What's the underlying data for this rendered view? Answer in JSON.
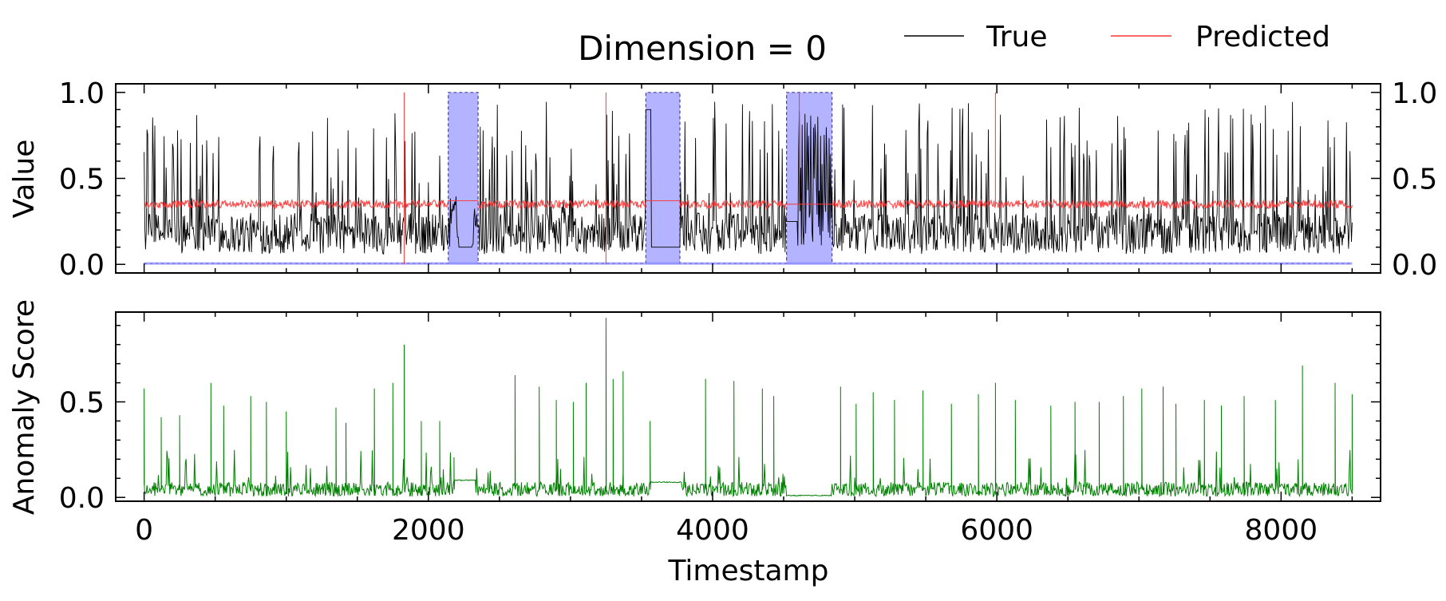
{
  "figure": {
    "title": "Dimension = 0",
    "legend": [
      {
        "label": "True",
        "color": "#000000"
      },
      {
        "label": "Predicted",
        "color": "#ff3333"
      }
    ],
    "legend_placement": "top-right"
  },
  "chart_data": [
    {
      "type": "line",
      "ylabel": "Value",
      "xlim": [
        -200,
        8700
      ],
      "ylim": [
        -0.05,
        1.05
      ],
      "xticks": [
        0,
        2000,
        4000,
        6000,
        8000
      ],
      "yticks": [
        0.0,
        0.5,
        1.0
      ],
      "ytick_labels": [
        "0.0",
        "0.5",
        "1.0"
      ],
      "ytick_labels_right": [
        "0.0",
        "0.5",
        "1.0"
      ],
      "grid": false,
      "x_range": [
        0,
        8500
      ],
      "series": [
        {
          "name": "True",
          "color": "#000000",
          "baseline": 0.18,
          "noise": 0.12,
          "spike_prob": 0.06,
          "spike_max": 0.95
        },
        {
          "name": "Predicted",
          "color": "#ff3333",
          "center": 0.35,
          "noise": 0.025,
          "spikes": [
            {
              "x": 1830,
              "y": 1.0
            },
            {
              "x": 1830,
              "y": 0.0
            },
            {
              "x": 3250,
              "y": 1.0
            },
            {
              "x": 3250,
              "y": 0.0
            },
            {
              "x": 4610,
              "y": 1.0
            },
            {
              "x": 5990,
              "y": 1.0
            }
          ]
        }
      ],
      "anomaly_labels": {
        "color": "#b3b3ff",
        "edge_color": "#4444aa",
        "low": 0.0,
        "high": 1.0,
        "regions": [
          [
            2140,
            2350
          ],
          [
            3530,
            3770
          ],
          [
            4520,
            4840
          ]
        ]
      }
    },
    {
      "type": "line",
      "ylabel": "Anomaly Score",
      "xlabel": "Timestamp",
      "xlim": [
        -200,
        8700
      ],
      "ylim": [
        -0.02,
        0.97
      ],
      "xticks": [
        0,
        2000,
        4000,
        6000,
        8000
      ],
      "xtick_labels": [
        "0",
        "2000",
        "4000",
        "6000",
        "8000"
      ],
      "yticks": [
        0.0,
        0.5
      ],
      "ytick_labels": [
        "0.0",
        "0.5"
      ],
      "grid": false,
      "series": [
        {
          "name": "Anomaly Score",
          "color": "#008000",
          "baseline": 0.04,
          "noise": 0.04,
          "peaks": [
            [
              0,
              0.57
            ],
            [
              120,
              0.42
            ],
            [
              250,
              0.43
            ],
            [
              470,
              0.6
            ],
            [
              560,
              0.48
            ],
            [
              750,
              0.53
            ],
            [
              860,
              0.5
            ],
            [
              1000,
              0.45
            ],
            [
              1350,
              0.47
            ],
            [
              1420,
              0.39
            ],
            [
              1620,
              0.57
            ],
            [
              1750,
              0.6
            ],
            [
              1830,
              0.8
            ],
            [
              1950,
              0.4
            ],
            [
              2080,
              0.4
            ],
            [
              2180,
              0.21
            ],
            [
              2610,
              0.64
            ],
            [
              2780,
              0.58
            ],
            [
              2900,
              0.51
            ],
            [
              3020,
              0.5
            ],
            [
              3110,
              0.6
            ],
            [
              3250,
              0.94
            ],
            [
              3300,
              0.62
            ],
            [
              3370,
              0.66
            ],
            [
              3560,
              0.4
            ],
            [
              3950,
              0.62
            ],
            [
              4150,
              0.61
            ],
            [
              4350,
              0.57
            ],
            [
              4430,
              0.53
            ],
            [
              4900,
              0.58
            ],
            [
              5010,
              0.49
            ],
            [
              5130,
              0.55
            ],
            [
              5280,
              0.51
            ],
            [
              5480,
              0.56
            ],
            [
              5680,
              0.49
            ],
            [
              5870,
              0.54
            ],
            [
              5990,
              0.6
            ],
            [
              6130,
              0.51
            ],
            [
              6380,
              0.48
            ],
            [
              6550,
              0.5
            ],
            [
              6720,
              0.5
            ],
            [
              6890,
              0.53
            ],
            [
              7020,
              0.57
            ],
            [
              7170,
              0.58
            ],
            [
              7260,
              0.49
            ],
            [
              7460,
              0.51
            ],
            [
              7580,
              0.48
            ],
            [
              7740,
              0.53
            ],
            [
              7960,
              0.51
            ],
            [
              8150,
              0.69
            ],
            [
              8380,
              0.6
            ],
            [
              8500,
              0.54
            ]
          ],
          "flat_regions": [
            [
              2180,
              2330,
              0.09
            ],
            [
              3560,
              3780,
              0.08
            ],
            [
              4520,
              4830,
              0.01
            ]
          ]
        }
      ]
    }
  ]
}
